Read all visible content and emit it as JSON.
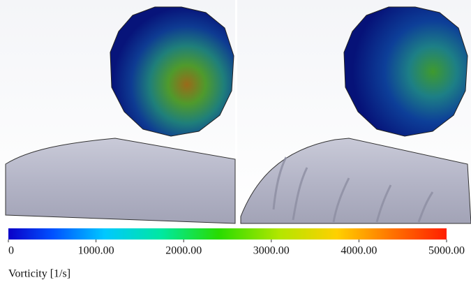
{
  "colorbar": {
    "label": "Vorticity [1/s]",
    "range": [
      0,
      5000
    ],
    "ticks": [
      0,
      {
        "value": 1000,
        "label": "1000.00"
      },
      {
        "value": 2000,
        "label": "2000.00"
      },
      {
        "value": 3000,
        "label": "3000.00"
      },
      {
        "value": 4000,
        "label": "4000.00"
      },
      {
        "value": 5000,
        "label": "5000.00"
      }
    ]
  }
}
